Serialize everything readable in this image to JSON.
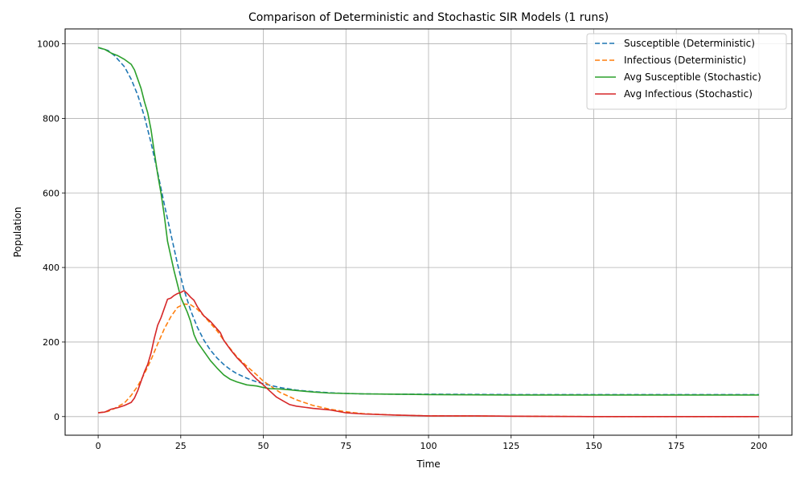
{
  "chart_data": {
    "type": "line",
    "title": "Comparison of Deterministic and Stochastic SIR Models (1 runs)",
    "xlabel": "Time",
    "ylabel": "Population",
    "xlim": [
      -10,
      210
    ],
    "ylim": [
      -50,
      1040
    ],
    "xticks": [
      0,
      25,
      50,
      75,
      100,
      125,
      150,
      175,
      200
    ],
    "yticks": [
      0,
      200,
      400,
      600,
      800,
      1000
    ],
    "grid": true,
    "legend_position": "top-right",
    "series": [
      {
        "name": "Susceptible (Deterministic)",
        "color": "#1f77b4",
        "dash": "dashed",
        "points": [
          [
            0,
            990
          ],
          [
            3,
            982
          ],
          [
            5,
            968
          ],
          [
            8,
            938
          ],
          [
            10,
            905
          ],
          [
            12,
            862
          ],
          [
            14,
            805
          ],
          [
            16,
            735
          ],
          [
            18,
            655
          ],
          [
            20,
            570
          ],
          [
            22,
            490
          ],
          [
            24,
            410
          ],
          [
            26,
            340
          ],
          [
            28,
            285
          ],
          [
            30,
            240
          ],
          [
            32,
            205
          ],
          [
            34,
            178
          ],
          [
            36,
            157
          ],
          [
            38,
            140
          ],
          [
            40,
            126
          ],
          [
            42,
            115
          ],
          [
            45,
            103
          ],
          [
            48,
            93
          ],
          [
            50,
            88
          ],
          [
            55,
            78
          ],
          [
            60,
            71
          ],
          [
            65,
            67
          ],
          [
            70,
            64
          ],
          [
            75,
            62
          ],
          [
            80,
            61
          ],
          [
            90,
            60
          ],
          [
            100,
            60
          ],
          [
            125,
            59
          ],
          [
            150,
            59
          ],
          [
            175,
            59
          ],
          [
            200,
            59
          ]
        ]
      },
      {
        "name": "Infectious (Deterministic)",
        "color": "#ff7f0e",
        "dash": "dashed",
        "points": [
          [
            0,
            10
          ],
          [
            3,
            14
          ],
          [
            5,
            22
          ],
          [
            8,
            37
          ],
          [
            10,
            57
          ],
          [
            12,
            82
          ],
          [
            14,
            115
          ],
          [
            16,
            152
          ],
          [
            18,
            195
          ],
          [
            20,
            235
          ],
          [
            22,
            268
          ],
          [
            24,
            293
          ],
          [
            26,
            302
          ],
          [
            28,
            300
          ],
          [
            30,
            288
          ],
          [
            32,
            270
          ],
          [
            34,
            250
          ],
          [
            36,
            230
          ],
          [
            38,
            205
          ],
          [
            40,
            182
          ],
          [
            42,
            160
          ],
          [
            45,
            135
          ],
          [
            48,
            112
          ],
          [
            50,
            95
          ],
          [
            55,
            65
          ],
          [
            60,
            45
          ],
          [
            65,
            30
          ],
          [
            70,
            20
          ],
          [
            75,
            13
          ],
          [
            80,
            8
          ],
          [
            90,
            4
          ],
          [
            100,
            2
          ],
          [
            125,
            1
          ],
          [
            150,
            0
          ],
          [
            175,
            0
          ],
          [
            200,
            0
          ]
        ]
      },
      {
        "name": "Avg Susceptible (Stochastic)",
        "color": "#2ca02c",
        "dash": "solid",
        "points": [
          [
            0,
            990
          ],
          [
            2,
            985
          ],
          [
            4,
            975
          ],
          [
            6,
            968
          ],
          [
            8,
            958
          ],
          [
            10,
            945
          ],
          [
            11,
            930
          ],
          [
            12,
            905
          ],
          [
            13,
            880
          ],
          [
            14,
            845
          ],
          [
            15,
            815
          ],
          [
            16,
            770
          ],
          [
            17,
            710
          ],
          [
            18,
            650
          ],
          [
            19,
            600
          ],
          [
            20,
            540
          ],
          [
            21,
            470
          ],
          [
            22,
            430
          ],
          [
            23,
            390
          ],
          [
            24,
            355
          ],
          [
            25,
            320
          ],
          [
            26,
            300
          ],
          [
            27,
            280
          ],
          [
            28,
            255
          ],
          [
            29,
            220
          ],
          [
            30,
            200
          ],
          [
            32,
            175
          ],
          [
            34,
            150
          ],
          [
            36,
            130
          ],
          [
            38,
            112
          ],
          [
            40,
            100
          ],
          [
            42,
            93
          ],
          [
            45,
            85
          ],
          [
            48,
            82
          ],
          [
            50,
            78
          ],
          [
            52,
            75
          ],
          [
            55,
            74
          ],
          [
            58,
            72
          ],
          [
            60,
            70
          ],
          [
            65,
            66
          ],
          [
            70,
            63
          ],
          [
            75,
            62
          ],
          [
            80,
            61
          ],
          [
            90,
            60
          ],
          [
            100,
            59
          ],
          [
            125,
            58
          ],
          [
            150,
            58
          ],
          [
            175,
            58
          ],
          [
            200,
            58
          ]
        ]
      },
      {
        "name": "Avg Infectious (Stochastic)",
        "color": "#d62728",
        "dash": "solid",
        "points": [
          [
            0,
            10
          ],
          [
            2,
            12
          ],
          [
            4,
            20
          ],
          [
            6,
            24
          ],
          [
            8,
            30
          ],
          [
            10,
            38
          ],
          [
            11,
            50
          ],
          [
            12,
            70
          ],
          [
            13,
            95
          ],
          [
            14,
            120
          ],
          [
            15,
            140
          ],
          [
            16,
            170
          ],
          [
            17,
            210
          ],
          [
            18,
            245
          ],
          [
            19,
            265
          ],
          [
            20,
            290
          ],
          [
            21,
            315
          ],
          [
            22,
            318
          ],
          [
            23,
            325
          ],
          [
            24,
            330
          ],
          [
            25,
            333
          ],
          [
            26,
            338
          ],
          [
            27,
            330
          ],
          [
            28,
            320
          ],
          [
            29,
            312
          ],
          [
            30,
            295
          ],
          [
            32,
            270
          ],
          [
            34,
            255
          ],
          [
            36,
            235
          ],
          [
            37,
            225
          ],
          [
            38,
            205
          ],
          [
            40,
            180
          ],
          [
            42,
            158
          ],
          [
            44,
            140
          ],
          [
            46,
            118
          ],
          [
            48,
            100
          ],
          [
            50,
            85
          ],
          [
            52,
            68
          ],
          [
            54,
            52
          ],
          [
            56,
            42
          ],
          [
            58,
            32
          ],
          [
            60,
            28
          ],
          [
            65,
            22
          ],
          [
            70,
            18
          ],
          [
            75,
            10
          ],
          [
            80,
            7
          ],
          [
            90,
            4
          ],
          [
            100,
            2
          ],
          [
            115,
            2
          ],
          [
            125,
            1
          ],
          [
            150,
            0
          ],
          [
            175,
            0
          ],
          [
            200,
            0
          ]
        ]
      }
    ]
  }
}
